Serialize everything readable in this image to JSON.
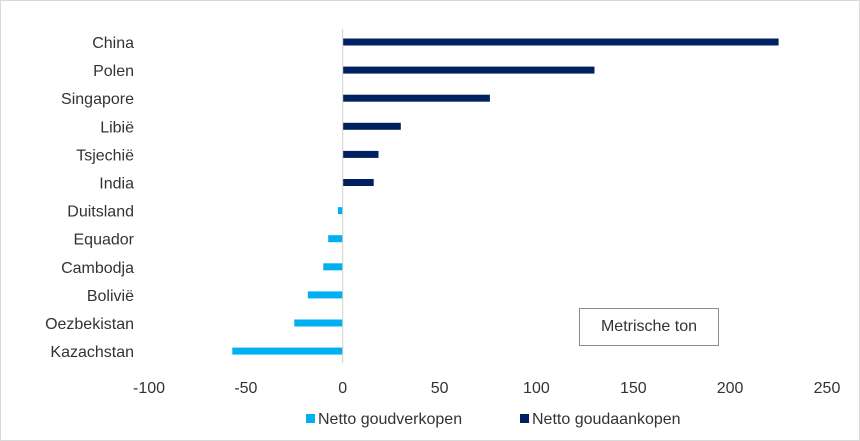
{
  "chart_data": {
    "type": "bar",
    "orientation": "horizontal",
    "categories": [
      "China",
      "Polen",
      "Singapore",
      "Libië",
      "Tsjechië",
      "India",
      "Duitsland",
      "Equador",
      "Cambodja",
      "Bolivië",
      "Oezbekistan",
      "Kazachstan"
    ],
    "series": [
      {
        "name": "Netto goudverkopen",
        "color": "#00b0f0",
        "values": [
          null,
          null,
          null,
          null,
          null,
          null,
          -2.5,
          -7.5,
          -10,
          -18,
          -25,
          -57
        ]
      },
      {
        "name": "Netto goudaankopen",
        "color": "#002060",
        "values": [
          225,
          130,
          76,
          30,
          18.5,
          16,
          null,
          null,
          null,
          null,
          null,
          null
        ]
      }
    ],
    "xlim": [
      -100,
      250
    ],
    "xticks": [
      "-100",
      "-50",
      "0",
      "50",
      "100",
      "150",
      "200",
      "250"
    ],
    "xtick_values": [
      -100,
      -50,
      0,
      50,
      100,
      150,
      200,
      250
    ],
    "grid": false,
    "legend_position": "bottom",
    "annotation": "Metrische ton"
  }
}
